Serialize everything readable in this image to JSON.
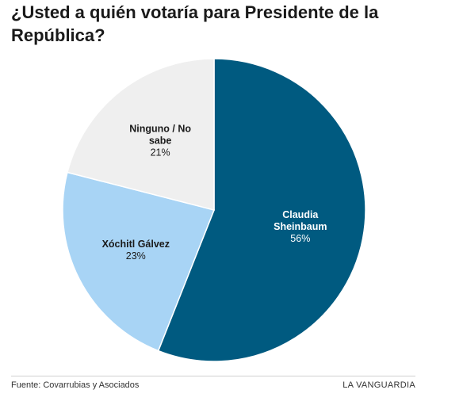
{
  "chart_data": {
    "type": "pie",
    "title": "¿Usted a quién votaría para Presidente de la República?",
    "slices": [
      {
        "label": "Claudia Sheinbaum",
        "value": 56,
        "value_label": "56%",
        "color": "#005a80",
        "text_color": "#ffffff"
      },
      {
        "label": "Xóchitl Gálvez",
        "value": 23,
        "value_label": "23%",
        "color": "#a8d4f5",
        "text_color": "#1a1a1a"
      },
      {
        "label": "Ninguno / No sabe",
        "value": 21,
        "value_label": "21%",
        "color": "#efefef",
        "text_color": "#1a1a1a"
      }
    ],
    "start": "12 o'clock",
    "direction": "clockwise",
    "legend": "none (labels inside slices)"
  },
  "footer": {
    "source": "Fuente: Covarrubias y Asociados",
    "brand": "LA VANGUARDIA"
  }
}
